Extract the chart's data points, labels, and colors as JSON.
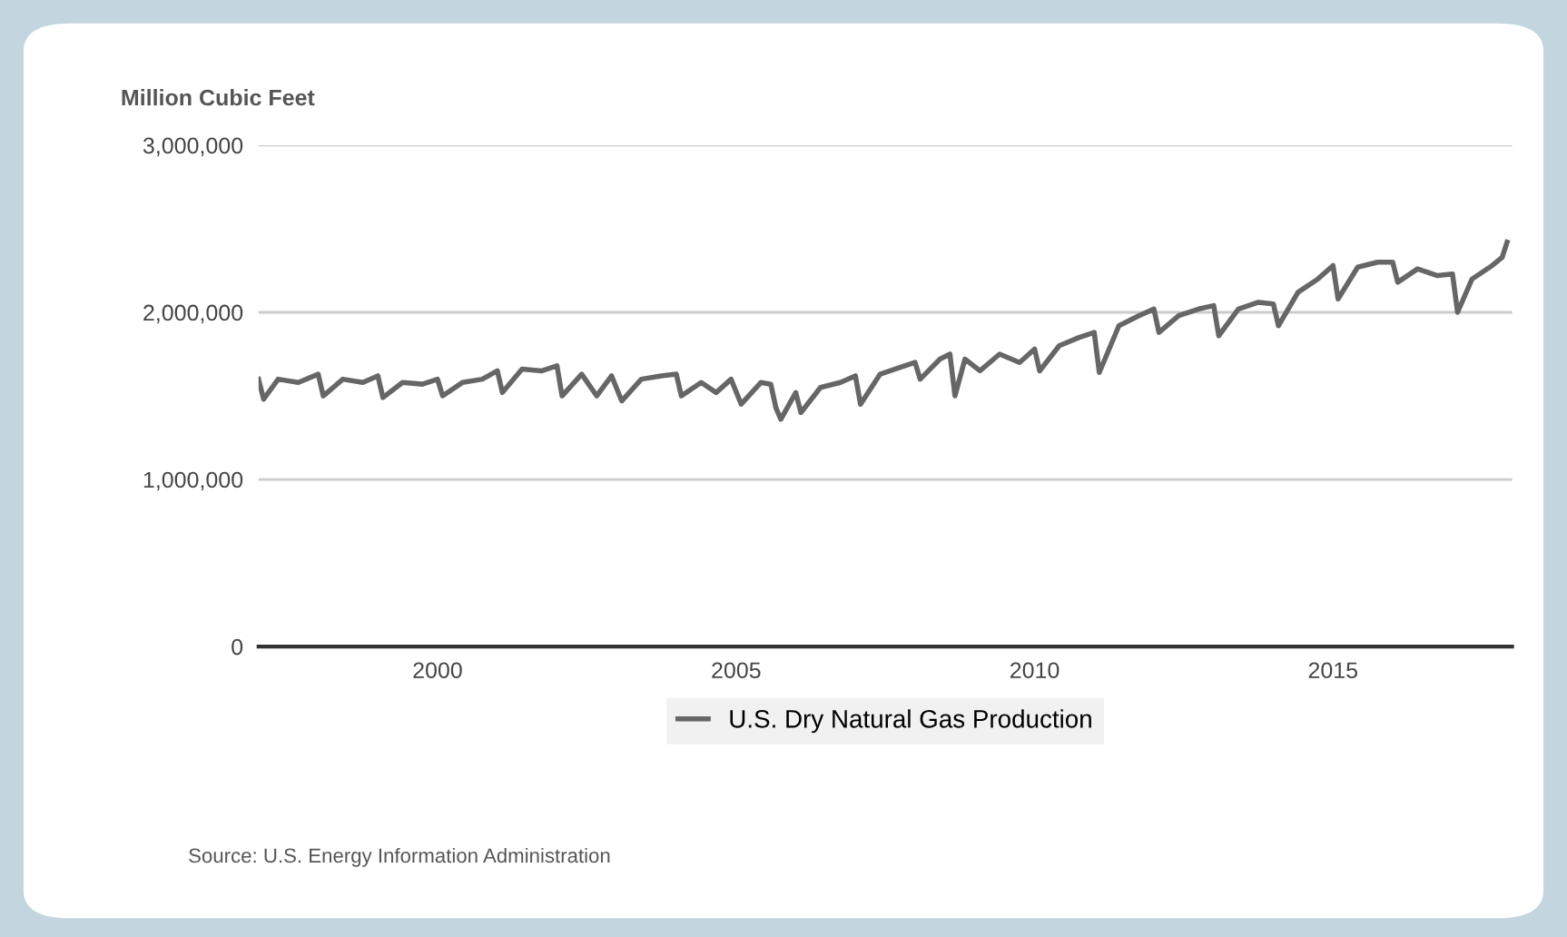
{
  "chart_data": {
    "type": "line",
    "ylabel": "Million Cubic Feet",
    "x": [
      "1997-01",
      "1997-02",
      "1997-05",
      "1997-09",
      "1998-01",
      "1998-02",
      "1998-06",
      "1998-10",
      "1999-01",
      "1999-02",
      "1999-06",
      "1999-10",
      "2000-01",
      "2000-02",
      "2000-06",
      "2000-10",
      "2001-01",
      "2001-02",
      "2001-06",
      "2001-10",
      "2002-01",
      "2002-02",
      "2002-06",
      "2002-09",
      "2002-12",
      "2003-02",
      "2003-06",
      "2003-10",
      "2004-01",
      "2004-02",
      "2004-06",
      "2004-09",
      "2004-12",
      "2005-02",
      "2005-06",
      "2005-08",
      "2005-09",
      "2005-10",
      "2006-01",
      "2006-02",
      "2006-06",
      "2006-10",
      "2007-01",
      "2007-02",
      "2007-06",
      "2007-10",
      "2008-01",
      "2008-02",
      "2008-06",
      "2008-08",
      "2008-09",
      "2008-11",
      "2009-02",
      "2009-06",
      "2009-10",
      "2010-01",
      "2010-02",
      "2010-06",
      "2010-10",
      "2011-01",
      "2011-02",
      "2011-06",
      "2011-10",
      "2012-01",
      "2012-02",
      "2012-06",
      "2012-10",
      "2013-01",
      "2013-02",
      "2013-06",
      "2013-10",
      "2014-01",
      "2014-02",
      "2014-06",
      "2014-10",
      "2015-01",
      "2015-02",
      "2015-06",
      "2015-10",
      "2016-01",
      "2016-02",
      "2016-06",
      "2016-10",
      "2017-01",
      "2017-02",
      "2017-05",
      "2017-09",
      "2017-11",
      "2017-12"
    ],
    "series": [
      {
        "name": "U.S. Dry Natural Gas Production",
        "color": "#666666",
        "values": [
          1600000,
          1480000,
          1600000,
          1580000,
          1630000,
          1500000,
          1600000,
          1580000,
          1620000,
          1490000,
          1580000,
          1570000,
          1600000,
          1500000,
          1580000,
          1600000,
          1650000,
          1520000,
          1660000,
          1650000,
          1680000,
          1500000,
          1630000,
          1500000,
          1620000,
          1470000,
          1600000,
          1620000,
          1630000,
          1500000,
          1580000,
          1520000,
          1600000,
          1450000,
          1580000,
          1570000,
          1430000,
          1360000,
          1520000,
          1400000,
          1550000,
          1580000,
          1620000,
          1450000,
          1630000,
          1670000,
          1700000,
          1600000,
          1720000,
          1750000,
          1500000,
          1720000,
          1650000,
          1750000,
          1700000,
          1780000,
          1650000,
          1800000,
          1850000,
          1880000,
          1640000,
          1920000,
          1980000,
          2020000,
          1880000,
          1980000,
          2020000,
          2040000,
          1860000,
          2020000,
          2060000,
          2050000,
          1920000,
          2120000,
          2200000,
          2280000,
          2080000,
          2270000,
          2300000,
          2300000,
          2180000,
          2260000,
          2220000,
          2230000,
          2000000,
          2200000,
          2280000,
          2330000,
          2420000
        ]
      }
    ],
    "xlim": [
      "1997-01",
      "2018-01"
    ],
    "xticks": [
      {
        "value": "2000-01-01",
        "label": "2000"
      },
      {
        "value": "2005-01-01",
        "label": "2005"
      },
      {
        "value": "2010-01-01",
        "label": "2010"
      },
      {
        "value": "2015-01-01",
        "label": "2015"
      }
    ],
    "ylim": [
      0,
      3000000
    ],
    "yticks": [
      {
        "value": 0,
        "label": "0"
      },
      {
        "value": 1000000,
        "label": "1,000,000"
      },
      {
        "value": 2000000,
        "label": "2,000,000"
      },
      {
        "value": 3000000,
        "label": "3,000,000"
      }
    ],
    "grid": "y",
    "legend": "bottom",
    "line_style": "solid",
    "marker": "none",
    "annotations": [
      "Source: U.S. Energy Information Administration"
    ]
  }
}
